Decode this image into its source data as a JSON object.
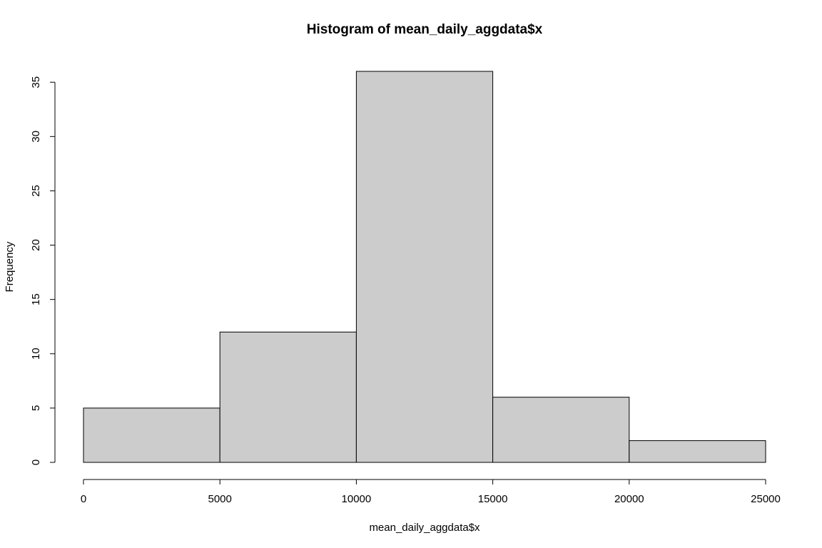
{
  "chart_data": {
    "type": "bar",
    "title": "Histogram of mean_daily_aggdata$x",
    "xlabel": "mean_daily_aggdata$x",
    "ylabel": "Frequency",
    "bins": [
      {
        "from": 0,
        "to": 5000,
        "count": 5
      },
      {
        "from": 5000,
        "to": 10000,
        "count": 12
      },
      {
        "from": 10000,
        "to": 15000,
        "count": 36
      },
      {
        "from": 15000,
        "to": 20000,
        "count": 6
      },
      {
        "from": 20000,
        "to": 25000,
        "count": 2
      }
    ],
    "xlim": [
      0,
      25000
    ],
    "ylim": [
      0,
      36
    ],
    "xticks": [
      0,
      5000,
      10000,
      15000,
      20000,
      25000
    ],
    "yticks": [
      0,
      5,
      10,
      15,
      20,
      25,
      30,
      35
    ],
    "grid": false,
    "bar_fill": "#cccccc",
    "bar_stroke": "#000000"
  }
}
